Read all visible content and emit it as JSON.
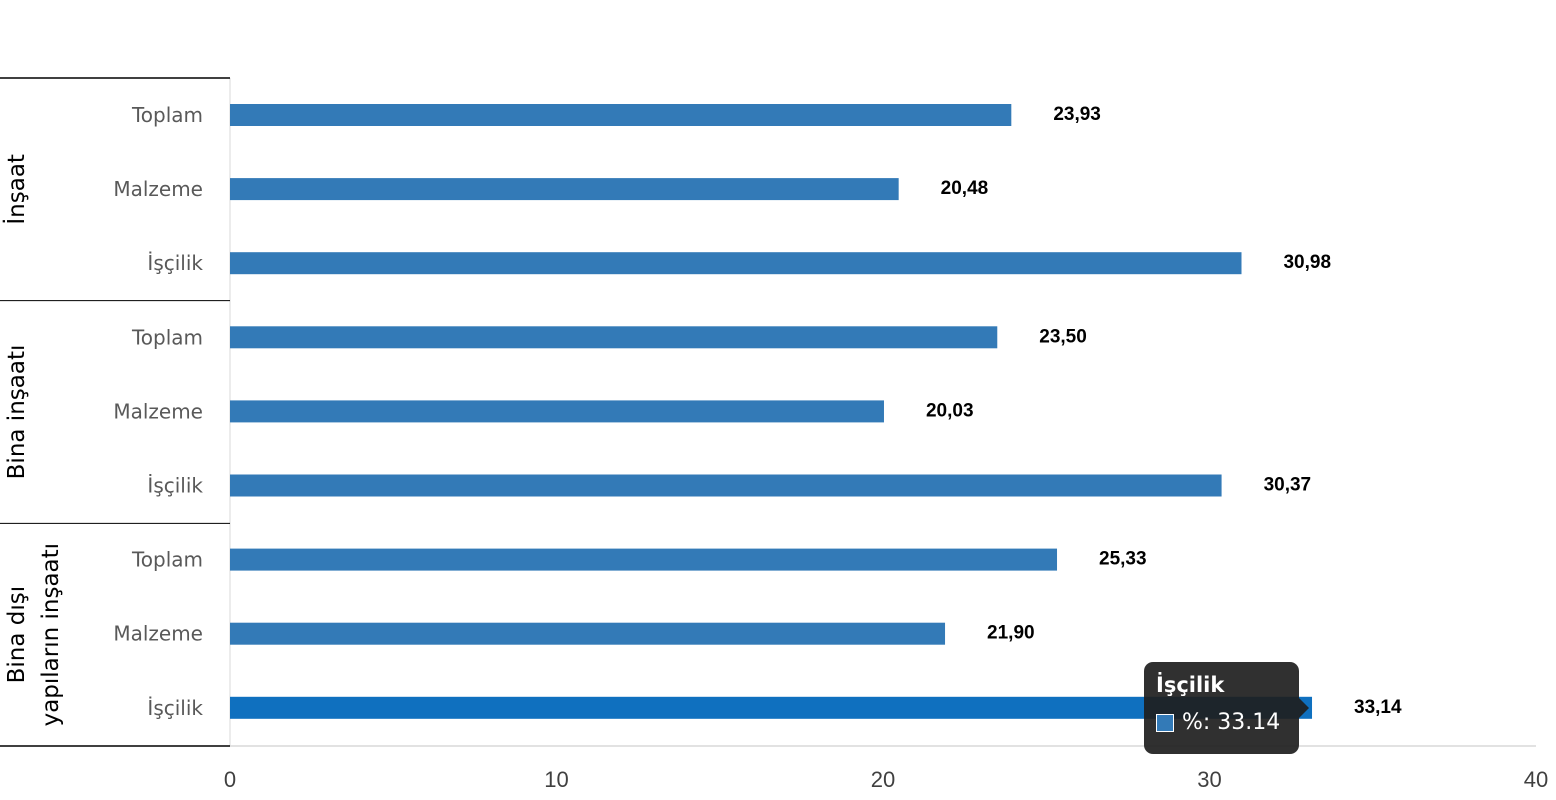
{
  "chart_data": {
    "type": "bar",
    "orientation": "horizontal",
    "groups": [
      {
        "name": "İnşaat",
        "categories": [
          "Toplam",
          "Malzeme",
          "İşçilik"
        ],
        "values": [
          23.93,
          20.48,
          30.98
        ],
        "labels": [
          "23,93",
          "20,48",
          "30,98"
        ]
      },
      {
        "name": "Bina inşaatı",
        "categories": [
          "Toplam",
          "Malzeme",
          "İşçilik"
        ],
        "values": [
          23.5,
          20.03,
          30.37
        ],
        "labels": [
          "23,50",
          "20,03",
          "30,37"
        ]
      },
      {
        "name": "Bina dışı yapıların inşaatı",
        "name_lines": [
          "Bina dışı",
          "yapıların inşaatı"
        ],
        "categories": [
          "Toplam",
          "Malzeme",
          "İşçilik"
        ],
        "values": [
          25.33,
          21.9,
          33.14
        ],
        "labels": [
          "25,33",
          "21,90",
          "33,14"
        ]
      }
    ],
    "xlim": [
      0,
      40
    ],
    "xticks": [
      "0",
      "10",
      "20",
      "30",
      "40"
    ],
    "grid": false,
    "bar_color": "#337ab7",
    "highlight_color": "#0f70bf"
  },
  "tooltip": {
    "title": "İşçilik",
    "text": "%: 33.14",
    "swatch_color": "#337ab7"
  }
}
